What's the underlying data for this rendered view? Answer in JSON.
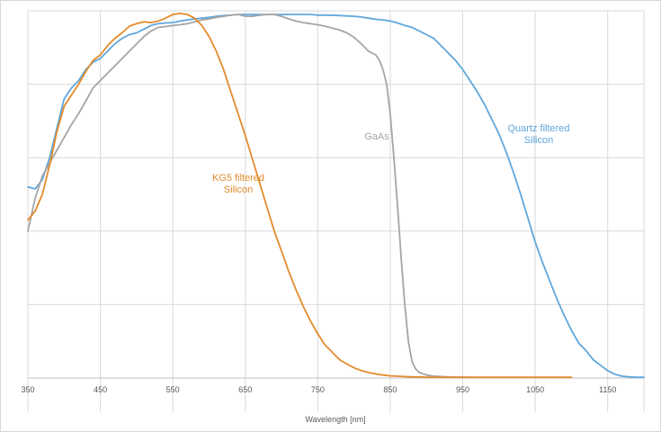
{
  "chart_data": {
    "type": "line",
    "title": "",
    "xlabel": "Wavelength [nm]",
    "ylabel": "",
    "xlim": [
      350,
      1200
    ],
    "ylim": [
      0,
      1.0
    ],
    "grid": true,
    "x_ticks": [
      350,
      450,
      550,
      650,
      750,
      850,
      950,
      1050,
      1150
    ],
    "x_tick_labels": [
      "350",
      "450",
      "550",
      "650",
      "750",
      "850",
      "950",
      "1050",
      "1150"
    ],
    "y_grid": [
      0.2,
      0.4,
      0.6,
      0.8,
      1.0
    ],
    "colors": {
      "quartz": "#5fa7dc",
      "gaas": "#a5a5a5",
      "kg5": "#e38b2c",
      "grid": "#d9d9d9"
    },
    "series": [
      {
        "key": "quartz",
        "label_lines": [
          "Quartz filtered",
          "Silicon"
        ],
        "color": "#5fa7dc",
        "x": [
          350,
          360,
          370,
          380,
          390,
          400,
          410,
          420,
          430,
          440,
          450,
          460,
          470,
          480,
          490,
          500,
          510,
          520,
          530,
          540,
          550,
          560,
          570,
          580,
          590,
          600,
          610,
          620,
          630,
          640,
          650,
          660,
          670,
          680,
          690,
          700,
          710,
          720,
          730,
          740,
          750,
          760,
          770,
          780,
          790,
          800,
          810,
          820,
          830,
          840,
          850,
          860,
          870,
          880,
          890,
          900,
          910,
          920,
          930,
          940,
          950,
          960,
          970,
          980,
          990,
          1000,
          1010,
          1020,
          1030,
          1040,
          1050,
          1060,
          1070,
          1080,
          1090,
          1100,
          1110,
          1120,
          1130,
          1140,
          1150,
          1160,
          1170,
          1180,
          1190,
          1200
        ],
        "y": [
          0.52,
          0.515,
          0.54,
          0.6,
          0.68,
          0.76,
          0.79,
          0.81,
          0.84,
          0.86,
          0.87,
          0.89,
          0.91,
          0.925,
          0.935,
          0.94,
          0.95,
          0.96,
          0.965,
          0.967,
          0.968,
          0.972,
          0.975,
          0.978,
          0.98,
          0.982,
          0.985,
          0.987,
          0.988,
          0.99,
          0.99,
          0.99,
          0.99,
          0.99,
          0.99,
          0.99,
          0.99,
          0.99,
          0.99,
          0.99,
          0.988,
          0.988,
          0.988,
          0.987,
          0.986,
          0.985,
          0.983,
          0.98,
          0.977,
          0.975,
          0.972,
          0.967,
          0.96,
          0.955,
          0.945,
          0.935,
          0.925,
          0.905,
          0.885,
          0.865,
          0.84,
          0.81,
          0.78,
          0.745,
          0.705,
          0.665,
          0.615,
          0.56,
          0.5,
          0.435,
          0.37,
          0.315,
          0.265,
          0.215,
          0.17,
          0.13,
          0.095,
          0.075,
          0.05,
          0.035,
          0.02,
          0.01,
          0.005,
          0.003,
          0.002,
          0.002
        ]
      },
      {
        "key": "gaas",
        "label_lines": [
          "GaAs"
        ],
        "color": "#a5a5a5",
        "x": [
          350,
          360,
          370,
          380,
          390,
          400,
          410,
          420,
          430,
          440,
          450,
          460,
          470,
          480,
          490,
          500,
          510,
          520,
          530,
          540,
          550,
          560,
          570,
          580,
          590,
          600,
          610,
          620,
          630,
          640,
          650,
          660,
          670,
          680,
          690,
          700,
          710,
          720,
          730,
          740,
          750,
          760,
          770,
          780,
          790,
          800,
          810,
          820,
          830,
          835,
          840,
          845,
          850,
          855,
          860,
          865,
          870,
          875,
          880,
          885,
          890,
          900,
          910,
          920,
          930,
          940,
          950,
          960
        ],
        "y": [
          0.4,
          0.49,
          0.55,
          0.585,
          0.62,
          0.655,
          0.69,
          0.72,
          0.755,
          0.79,
          0.81,
          0.83,
          0.85,
          0.87,
          0.89,
          0.91,
          0.93,
          0.945,
          0.955,
          0.957,
          0.96,
          0.962,
          0.965,
          0.97,
          0.975,
          0.978,
          0.982,
          0.985,
          0.988,
          0.99,
          0.985,
          0.985,
          0.988,
          0.99,
          0.99,
          0.985,
          0.978,
          0.972,
          0.968,
          0.965,
          0.962,
          0.958,
          0.953,
          0.948,
          0.94,
          0.928,
          0.91,
          0.89,
          0.88,
          0.865,
          0.84,
          0.8,
          0.72,
          0.6,
          0.47,
          0.33,
          0.2,
          0.1,
          0.045,
          0.025,
          0.015,
          0.008,
          0.005,
          0.004,
          0.003,
          0.002,
          0.002,
          0.002
        ]
      },
      {
        "key": "kg5",
        "label_lines": [
          "KG5 filtered",
          "Silicon"
        ],
        "color": "#e38b2c",
        "x": [
          350,
          360,
          370,
          380,
          390,
          400,
          410,
          420,
          430,
          440,
          450,
          460,
          470,
          480,
          490,
          500,
          510,
          520,
          530,
          540,
          550,
          560,
          570,
          580,
          590,
          600,
          610,
          620,
          630,
          640,
          650,
          660,
          670,
          680,
          690,
          700,
          710,
          720,
          730,
          740,
          750,
          760,
          770,
          780,
          790,
          800,
          810,
          820,
          830,
          840,
          850,
          860,
          870,
          880,
          890,
          900,
          910,
          920,
          930,
          940,
          950,
          960,
          970,
          980,
          990,
          1000,
          1020,
          1040,
          1060,
          1080,
          1100
        ],
        "y": [
          0.43,
          0.455,
          0.5,
          0.58,
          0.67,
          0.74,
          0.77,
          0.8,
          0.835,
          0.865,
          0.88,
          0.905,
          0.925,
          0.94,
          0.958,
          0.965,
          0.97,
          0.968,
          0.972,
          0.98,
          0.99,
          0.993,
          0.99,
          0.98,
          0.96,
          0.93,
          0.89,
          0.84,
          0.78,
          0.72,
          0.66,
          0.595,
          0.53,
          0.465,
          0.4,
          0.345,
          0.29,
          0.24,
          0.195,
          0.155,
          0.12,
          0.09,
          0.07,
          0.05,
          0.038,
          0.028,
          0.02,
          0.015,
          0.011,
          0.008,
          0.006,
          0.005,
          0.004,
          0.003,
          0.003,
          0.002,
          0.002,
          0.002,
          0.002,
          0.002,
          0.002,
          0.002,
          0.002,
          0.002,
          0.002,
          0.002,
          0.002,
          0.002,
          0.002,
          0.002,
          0.002
        ]
      }
    ]
  }
}
